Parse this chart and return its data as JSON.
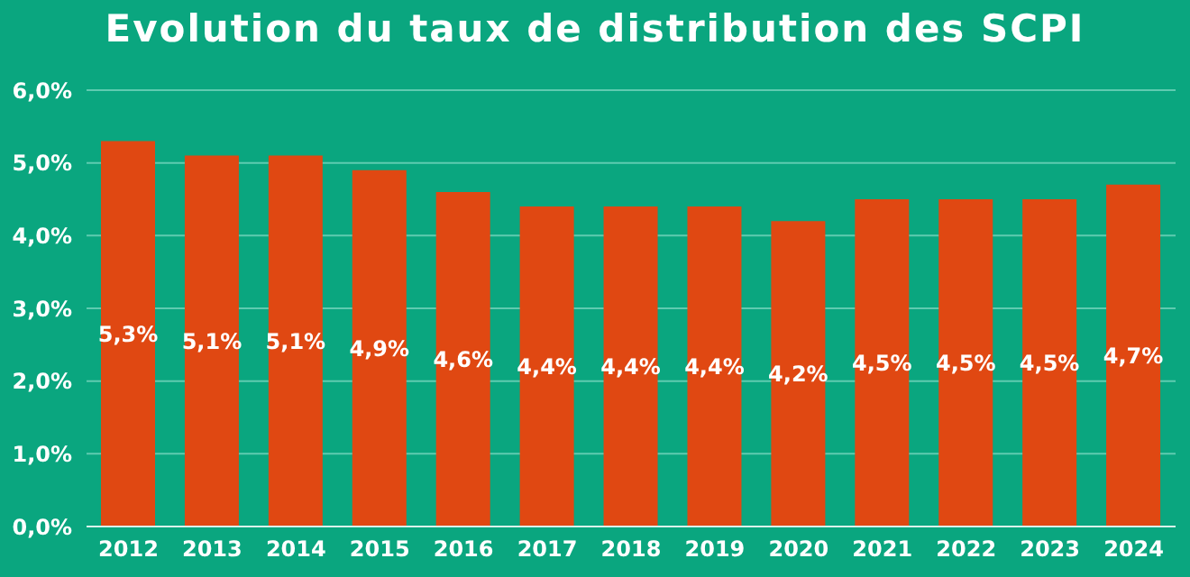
{
  "chart_data": {
    "type": "bar",
    "title": "Evolution du taux de distribution des SCPI",
    "categories": [
      "2012",
      "2013",
      "2014",
      "2015",
      "2016",
      "2017",
      "2018",
      "2019",
      "2020",
      "2021",
      "2022",
      "2023",
      "2024"
    ],
    "values": [
      5.3,
      5.1,
      5.1,
      4.9,
      4.6,
      4.4,
      4.4,
      4.4,
      4.2,
      4.5,
      4.5,
      4.5,
      4.7
    ],
    "value_labels": [
      "5,3%",
      "5,1%",
      "5,1%",
      "4,9%",
      "4,6%",
      "4,4%",
      "4,4%",
      "4,4%",
      "4,2%",
      "4,5%",
      "4,5%",
      "4,5%",
      "4,7%"
    ],
    "color": "#e04812",
    "ylim": [
      0,
      6
    ],
    "yticks": [
      {
        "value": 0,
        "label": "0,0%"
      },
      {
        "value": 1,
        "label": "1,0%"
      },
      {
        "value": 2,
        "label": "2,0%"
      },
      {
        "value": 3,
        "label": "3,0%"
      },
      {
        "value": 4,
        "label": "4,0%"
      },
      {
        "value": 5,
        "label": "5,0%"
      },
      {
        "value": 6,
        "label": "6,0%"
      }
    ],
    "grid": "y",
    "legend": false
  }
}
